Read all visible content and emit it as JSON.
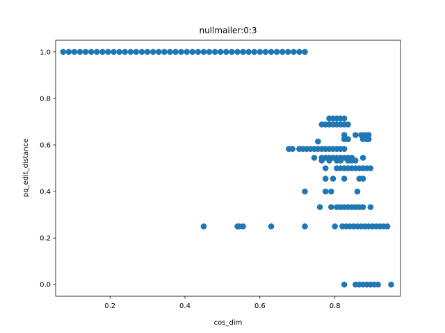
{
  "chart_data": {
    "type": "scatter",
    "title": "nullmailer:0:3",
    "xlabel": "cos_dim",
    "ylabel": "pq_edit_distance",
    "xlim": [
      0.055,
      0.975
    ],
    "ylim": [
      -0.05,
      1.05
    ],
    "xticks": [
      0.2,
      0.4,
      0.6,
      0.8
    ],
    "xtick_labels": [
      "0.2",
      "0.4",
      "0.6",
      "0.8"
    ],
    "yticks": [
      0.0,
      0.2,
      0.4,
      0.6,
      0.8,
      1.0
    ],
    "ytick_labels": [
      "0.0",
      "0.2",
      "0.4",
      "0.6",
      "0.8",
      "1.0"
    ],
    "grid": false,
    "marker_color": "#1f77b4",
    "series": [
      {
        "x": [
          0.075,
          0.09,
          0.105,
          0.12,
          0.135,
          0.15,
          0.165,
          0.18,
          0.195,
          0.21,
          0.225,
          0.24,
          0.255,
          0.27,
          0.285,
          0.3,
          0.315,
          0.33,
          0.345,
          0.36,
          0.375,
          0.39,
          0.405,
          0.42,
          0.435,
          0.45,
          0.465,
          0.48,
          0.495,
          0.51,
          0.525,
          0.54,
          0.555,
          0.57,
          0.585,
          0.6,
          0.615,
          0.63,
          0.645,
          0.66,
          0.675,
          0.69,
          0.705,
          0.72,
          0.677,
          0.687,
          0.705,
          0.715,
          0.725,
          0.735,
          0.745,
          0.755,
          0.765,
          0.775,
          0.785,
          0.795,
          0.805,
          0.815,
          0.825,
          0.765,
          0.775,
          0.785,
          0.795,
          0.805,
          0.815,
          0.825,
          0.835,
          0.785,
          0.795,
          0.805,
          0.815,
          0.825,
          0.825,
          0.855,
          0.87,
          0.88,
          0.89,
          0.825,
          0.835,
          0.875,
          0.885,
          0.89,
          0.755,
          0.745,
          0.765,
          0.775,
          0.785,
          0.795,
          0.805,
          0.815,
          0.825,
          0.835,
          0.845,
          0.875,
          0.765,
          0.785,
          0.805,
          0.815,
          0.835,
          0.845,
          0.855,
          0.775,
          0.805,
          0.815,
          0.825,
          0.835,
          0.845,
          0.855,
          0.865,
          0.875,
          0.885,
          0.895,
          0.775,
          0.795,
          0.825,
          0.865,
          0.875,
          0.72,
          0.775,
          0.79,
          0.86,
          0.76,
          0.79,
          0.805,
          0.815,
          0.825,
          0.835,
          0.845,
          0.855,
          0.865,
          0.875,
          0.895,
          0.45,
          0.54,
          0.545,
          0.555,
          0.63,
          0.72,
          0.8,
          0.82,
          0.83,
          0.84,
          0.85,
          0.86,
          0.87,
          0.88,
          0.89,
          0.9,
          0.91,
          0.92,
          0.93,
          0.94,
          0.825,
          0.855,
          0.865,
          0.875,
          0.885,
          0.895,
          0.905,
          0.915,
          0.95
        ],
        "y": [
          1,
          1,
          1,
          1,
          1,
          1,
          1,
          1,
          1,
          1,
          1,
          1,
          1,
          1,
          1,
          1,
          1,
          1,
          1,
          1,
          1,
          1,
          1,
          1,
          1,
          1,
          1,
          1,
          1,
          1,
          1,
          1,
          1,
          1,
          1,
          1,
          1,
          1,
          1,
          1,
          1,
          1,
          1,
          1,
          0.583,
          0.583,
          0.583,
          0.583,
          0.583,
          0.583,
          0.583,
          0.583,
          0.583,
          0.583,
          0.583,
          0.583,
          0.583,
          0.583,
          0.583,
          0.688,
          0.688,
          0.688,
          0.688,
          0.688,
          0.688,
          0.688,
          0.688,
          0.714,
          0.714,
          0.714,
          0.714,
          0.714,
          0.643,
          0.643,
          0.643,
          0.643,
          0.643,
          0.625,
          0.625,
          0.625,
          0.625,
          0.625,
          0.615,
          0.545,
          0.545,
          0.545,
          0.545,
          0.545,
          0.545,
          0.545,
          0.545,
          0.545,
          0.545,
          0.545,
          0.533,
          0.533,
          0.533,
          0.533,
          0.533,
          0.533,
          0.533,
          0.5,
          0.5,
          0.5,
          0.5,
          0.5,
          0.5,
          0.5,
          0.5,
          0.5,
          0.5,
          0.5,
          0.455,
          0.455,
          0.455,
          0.455,
          0.455,
          0.4,
          0.4,
          0.4,
          0.4,
          0.333,
          0.333,
          0.333,
          0.333,
          0.333,
          0.333,
          0.333,
          0.333,
          0.333,
          0.333,
          0.333,
          0.25,
          0.25,
          0.25,
          0.25,
          0.25,
          0.25,
          0.25,
          0.25,
          0.25,
          0.25,
          0.25,
          0.25,
          0.25,
          0.25,
          0.25,
          0.25,
          0.25,
          0.25,
          0.25,
          0.25,
          0,
          0,
          0,
          0,
          0,
          0,
          0,
          0,
          0
        ]
      }
    ]
  }
}
